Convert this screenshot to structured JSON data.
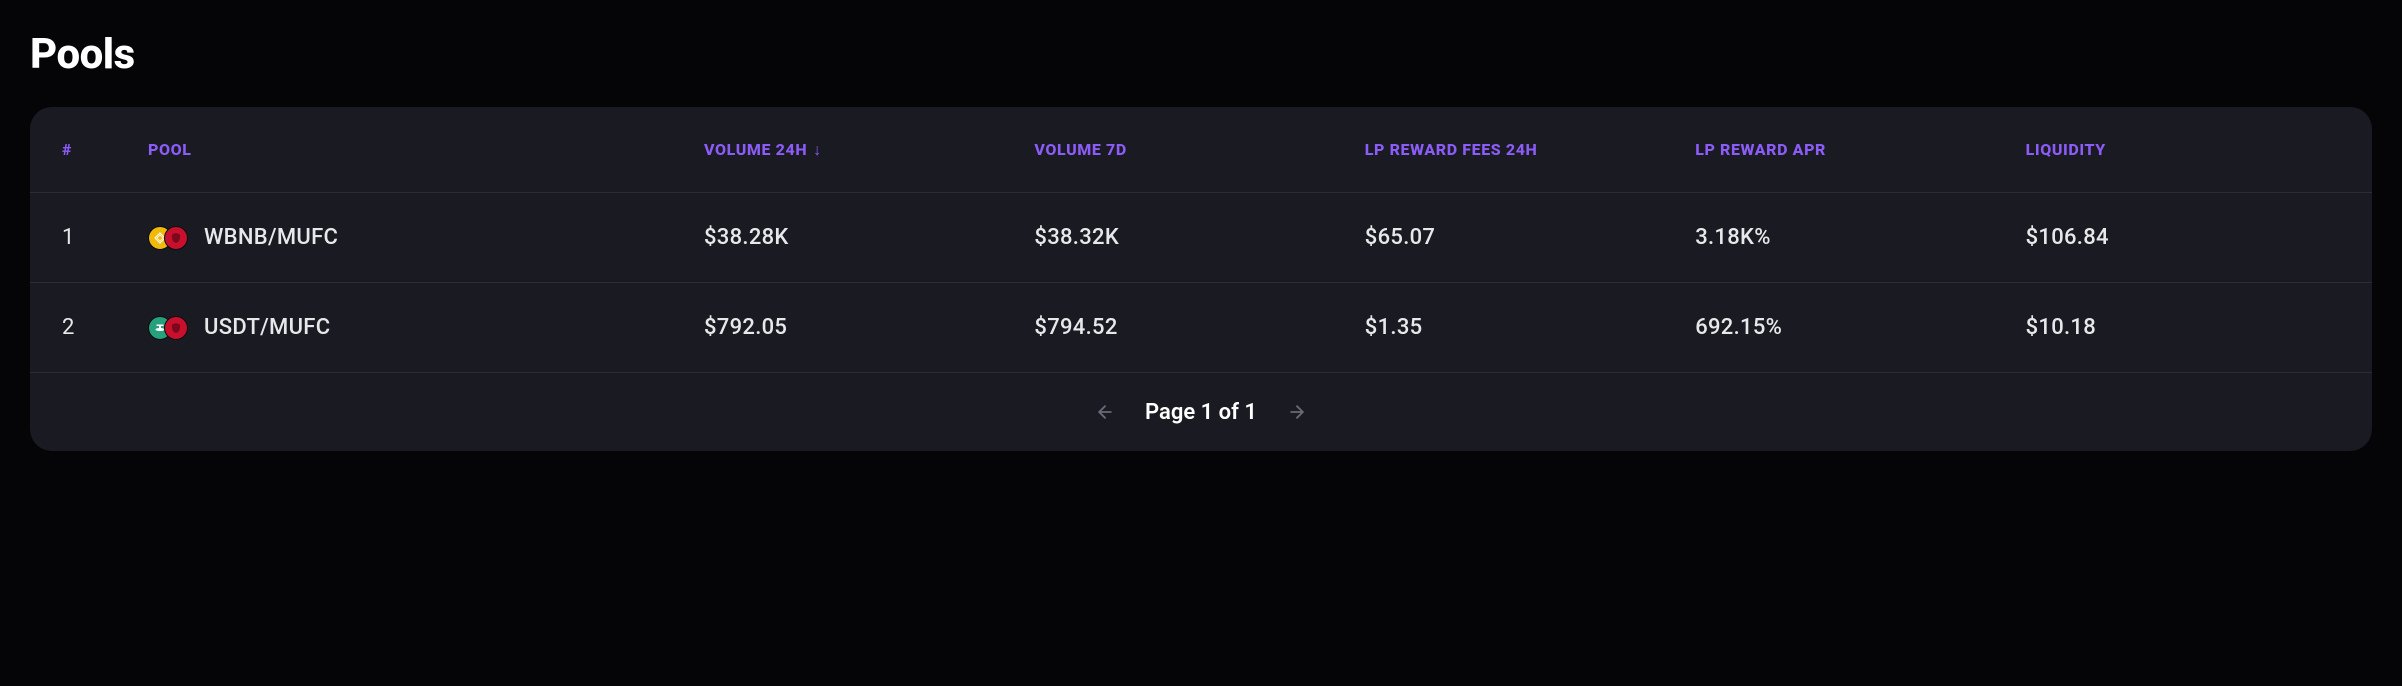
{
  "title": "Pools",
  "columns": {
    "idx": "#",
    "pool": "POOL",
    "vol24h": "VOLUME 24H",
    "vol7d": "VOLUME 7D",
    "fees24h": "LP REWARD FEES 24H",
    "apr": "LP REWARD APR",
    "liquidity": "LIQUIDITY"
  },
  "sort": {
    "column": "vol24h",
    "direction_glyph": "↓"
  },
  "rows": [
    {
      "idx": "1",
      "pair": "WBNB/MUFC",
      "icons": [
        {
          "name": "wbnb-icon",
          "bg": "#F0B90B",
          "glyph": "diamond",
          "glyph_color": "#ffffff"
        },
        {
          "name": "mufc-icon",
          "bg": "#C8102E",
          "glyph": "shield",
          "glyph_color": "#7a0a1b"
        }
      ],
      "vol24h": "$38.28K",
      "vol7d": "$38.32K",
      "fees24h": "$65.07",
      "apr": "3.18K%",
      "liquidity": "$106.84"
    },
    {
      "idx": "2",
      "pair": "USDT/MUFC",
      "icons": [
        {
          "name": "usdt-icon",
          "bg": "#26A17B",
          "glyph": "tether",
          "glyph_color": "#ffffff"
        },
        {
          "name": "mufc-icon",
          "bg": "#C8102E",
          "glyph": "shield",
          "glyph_color": "#7a0a1b"
        }
      ],
      "vol24h": "$792.05",
      "vol7d": "$794.52",
      "fees24h": "$1.35",
      "apr": "692.15%",
      "liquidity": "$10.18"
    }
  ],
  "pagination": {
    "label": "Page 1 of 1"
  },
  "colors": {
    "page_bg": "#050507",
    "panel_bg": "#1a1a23",
    "border": "#2c2c36",
    "header_text": "#8b5cf6",
    "body_text": "#e8e8ea",
    "pager_icon": "#6b6b78"
  }
}
